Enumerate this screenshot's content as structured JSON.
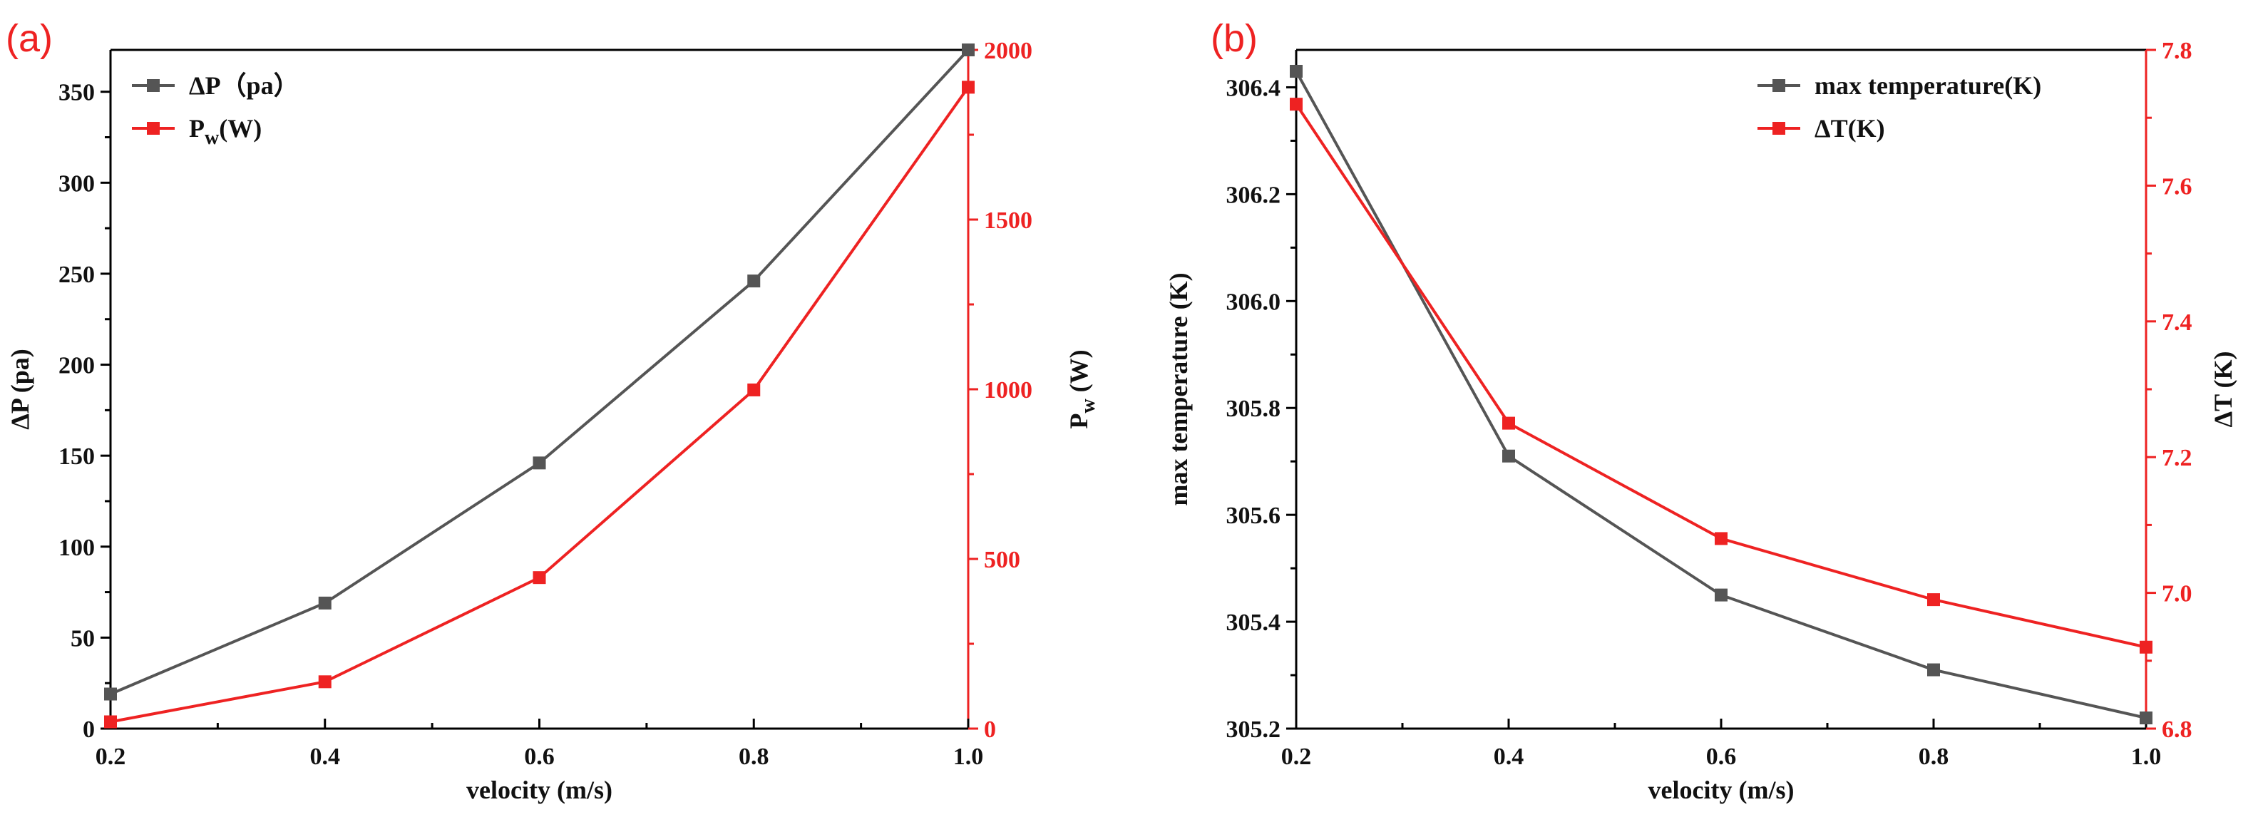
{
  "chart_data": [
    {
      "type": "line",
      "panel_label": "(a)",
      "x": [
        0.2,
        0.4,
        0.6,
        0.8,
        1.0
      ],
      "xlabel": "velocity (m/s)",
      "xlim": [
        0.2,
        1.0
      ],
      "xticks": [
        "0.2",
        "0.4",
        "0.6",
        "0.8",
        "1.0"
      ],
      "legend_position": "top-left",
      "series": [
        {
          "name": "ΔP（pa）",
          "legend_main": "ΔP（pa）",
          "legend_sub": "",
          "legend_suffix": "",
          "axis": "left",
          "color": "#555555",
          "values": [
            19,
            69,
            146,
            246,
            373
          ]
        },
        {
          "name": "Pw(W)",
          "legend_main": "P",
          "legend_sub": "w",
          "legend_suffix": "(W)",
          "axis": "right",
          "color": "#ee2222",
          "values": [
            20,
            138,
            445,
            998,
            1890
          ]
        }
      ],
      "left_axis": {
        "label": "ΔP (pa)",
        "label_main": "ΔP (pa)",
        "label_sub": "",
        "label_suffix": "",
        "ylim": [
          0,
          373
        ],
        "ticks": [
          "0",
          "50",
          "100",
          "150",
          "200",
          "250",
          "300",
          "350"
        ]
      },
      "right_axis": {
        "label": "Pw (W)",
        "label_main": "P",
        "label_sub": "w",
        "label_suffix": " (W)",
        "ylim": [
          0,
          2000
        ],
        "ticks": [
          "0",
          "500",
          "1000",
          "1500",
          "2000"
        ]
      }
    },
    {
      "type": "line",
      "panel_label": "(b)",
      "x": [
        0.2,
        0.4,
        0.6,
        0.8,
        1.0
      ],
      "xlabel": "velocity (m/s)",
      "xlim": [
        0.2,
        1.0
      ],
      "xticks": [
        "0.2",
        "0.4",
        "0.6",
        "0.8",
        "1.0"
      ],
      "legend_position": "top-right",
      "series": [
        {
          "name": "max temperature(K)",
          "legend_main": "max temperature(K)",
          "legend_sub": "",
          "legend_suffix": "",
          "axis": "left",
          "color": "#555555",
          "values": [
            306.43,
            305.71,
            305.45,
            305.31,
            305.22
          ]
        },
        {
          "name": "ΔT(K)",
          "legend_main": "ΔT(K)",
          "legend_sub": "",
          "legend_suffix": "",
          "axis": "right",
          "color": "#ee2222",
          "values": [
            7.72,
            7.25,
            7.08,
            6.99,
            6.92
          ]
        }
      ],
      "left_axis": {
        "label": "max temperature (K)",
        "label_main": "max temperature (K)",
        "label_sub": "",
        "label_suffix": "",
        "ylim": [
          305.2,
          306.47
        ],
        "ticks": [
          "305.2",
          "305.4",
          "305.6",
          "305.8",
          "306.0",
          "306.2",
          "306.4"
        ]
      },
      "right_axis": {
        "label": "ΔT (K)",
        "label_main": "ΔT (K)",
        "label_sub": "",
        "label_suffix": "",
        "ylim": [
          6.8,
          7.8
        ],
        "ticks": [
          "6.8",
          "7.0",
          "7.2",
          "7.4",
          "7.6",
          "7.8"
        ]
      }
    }
  ]
}
